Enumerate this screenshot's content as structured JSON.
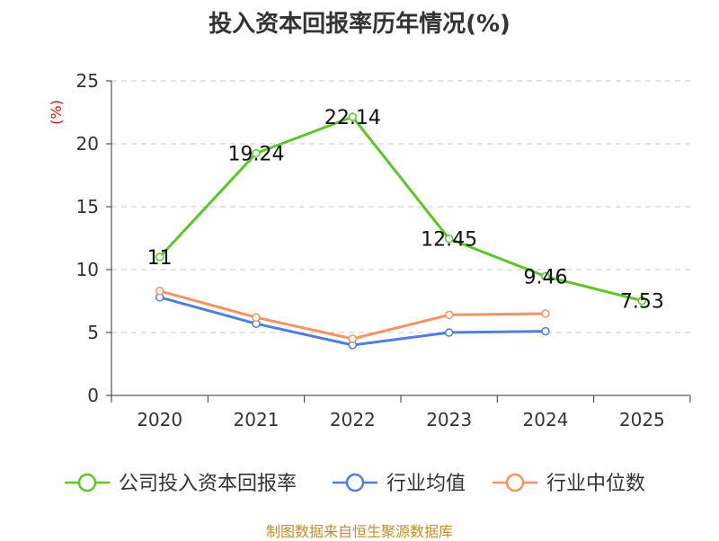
{
  "chart_data": {
    "type": "line",
    "title": "投入资本回报率历年情况(%)",
    "ylabel": "(%)",
    "xlabel": "",
    "categories": [
      "2020",
      "2021",
      "2022",
      "2023",
      "2024",
      "2025"
    ],
    "y_ticks": [
      "0",
      "5",
      "10",
      "15",
      "20",
      "25"
    ],
    "ylim": [
      0,
      25
    ],
    "grid": true,
    "legend_position": "bottom",
    "series": [
      {
        "name": "公司投入资本回报率",
        "color": "#5dc42a",
        "values": [
          11,
          19.24,
          22.14,
          12.45,
          9.46,
          7.53
        ],
        "labels": [
          "11",
          "19.24",
          "22.14",
          "12.45",
          "9.46",
          "7.53"
        ]
      },
      {
        "name": "行业均值",
        "color": "#4e7fdc",
        "values": [
          7.8,
          5.7,
          4.0,
          5.0,
          5.1,
          null
        ]
      },
      {
        "name": "行业中位数",
        "color": "#f59363",
        "values": [
          8.3,
          6.2,
          4.5,
          6.4,
          6.5,
          null
        ]
      }
    ]
  },
  "footer": {
    "source": "制图数据来自恒生聚源数据库"
  }
}
